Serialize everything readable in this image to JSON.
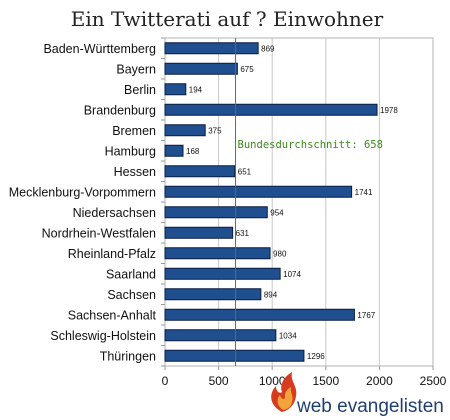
{
  "chart_data": {
    "type": "bar",
    "orientation": "horizontal",
    "title": "Ein Twitterati auf ? Einwohner",
    "categories": [
      "Baden-Württemberg",
      "Bayern",
      "Berlin",
      "Brandenburg",
      "Bremen",
      "Hamburg",
      "Hessen",
      "Mecklenburg-Vorpommern",
      "Niedersachsen",
      "Nordrhein-Westfalen",
      "Rheinland-Pfalz",
      "Saarland",
      "Sachsen",
      "Sachsen-Anhalt",
      "Schleswig-Holstein",
      "Thüringen"
    ],
    "values": [
      869,
      675,
      194,
      1978,
      375,
      168,
      651,
      1741,
      954,
      631,
      980,
      1074,
      894,
      1767,
      1034,
      1296
    ],
    "value_labels": [
      "869",
      "675",
      "194",
      "1978",
      "375",
      "168",
      "651",
      "1741",
      "954",
      "631",
      "980",
      "1074",
      "894",
      "1767",
      "1034",
      "1296"
    ],
    "xlim": [
      0,
      2500
    ],
    "xticks": [
      0,
      500,
      1000,
      1500,
      2000,
      2500
    ],
    "xtick_labels": [
      "0",
      "500",
      "1000",
      "1500",
      "2000",
      "2500"
    ],
    "grid": true,
    "reference_line": {
      "value": 658,
      "label": "Bundesdurchschnitt: 658",
      "color": "#3a8a1a"
    },
    "bar_color": "#1f4f8f",
    "bar_edge_color": "#0a1f40"
  },
  "brand": {
    "name": "web evangelisten",
    "color": "#1f3f73",
    "accent": "#d63a1f"
  }
}
